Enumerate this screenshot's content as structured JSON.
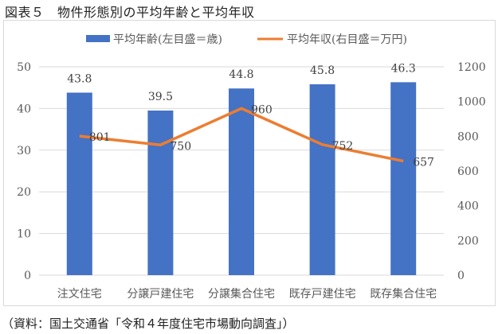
{
  "figure": {
    "title": "図表５　物件形態別の平均年齢と平均年収",
    "source": "（資料：国土交通省「令和４年度住宅市場動向調査」）"
  },
  "legend": {
    "bar_label": "平均年齢(左目盛＝歳)",
    "line_label": "平均年収(右目盛＝万円)"
  },
  "colors": {
    "bar": "#4472C4",
    "line": "#ED7D31",
    "grid": "#d9d9d9",
    "text": "#595959"
  },
  "chart_data": {
    "type": "bar+line",
    "title": "物件形態別の平均年齢と平均年収",
    "categories": [
      "注文住宅",
      "分譲戸建住宅",
      "分譲集合住宅",
      "既存戸建住宅",
      "既存集合住宅"
    ],
    "series": [
      {
        "name": "平均年齢(左目盛＝歳)",
        "type": "bar",
        "axis": "left",
        "values": [
          43.8,
          39.5,
          44.8,
          45.8,
          46.3
        ],
        "labels": [
          "43.8",
          "39.5",
          "44.8",
          "45.8",
          "46.3"
        ]
      },
      {
        "name": "平均年収(右目盛＝万円)",
        "type": "line",
        "axis": "right",
        "values": [
          801,
          750,
          960,
          752,
          657
        ],
        "labels": [
          "801",
          "750",
          "960",
          "752",
          "657"
        ]
      }
    ],
    "y_left": {
      "min": 0,
      "max": 50,
      "ticks": [
        "0",
        "10",
        "20",
        "30",
        "40",
        "50"
      ]
    },
    "y_right": {
      "min": 0,
      "max": 1200,
      "ticks": [
        "0",
        "200",
        "400",
        "600",
        "800",
        "1000",
        "1200"
      ]
    },
    "grid": true,
    "legend_position": "top"
  }
}
